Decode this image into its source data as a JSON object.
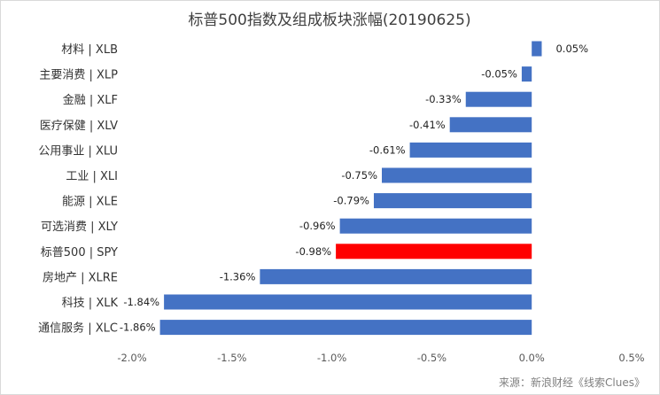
{
  "chart_data": {
    "type": "bar",
    "orientation": "horizontal",
    "title": "标普500指数及组成板块涨幅(20190625)",
    "categories": [
      "材料 | XLB",
      "主要消费 | XLP",
      "金融 | XLF",
      "医疗保健 | XLV",
      "公用事业 | XLU",
      "工业 | XLI",
      "能源 | XLE",
      "可选消费 | XLY",
      "标普500 | SPY",
      "房地产 | XLRE",
      "科技 | XLK",
      "通信服务 | XLC"
    ],
    "values": [
      0.05,
      -0.05,
      -0.33,
      -0.41,
      -0.61,
      -0.75,
      -0.79,
      -0.96,
      -0.98,
      -1.36,
      -1.84,
      -1.86
    ],
    "data_labels": [
      "0.05%",
      "-0.05%",
      "-0.33%",
      "-0.41%",
      "-0.61%",
      "-0.75%",
      "-0.79%",
      "-0.96%",
      "-0.98%",
      "-1.36%",
      "-1.84%",
      "-1.86%"
    ],
    "highlight_index": 8,
    "colors": {
      "bar": "#4472c4",
      "highlight": "#ff0000"
    },
    "xlim": [
      -2.0,
      0.5
    ],
    "x_ticks": [
      -2.0,
      -1.5,
      -1.0,
      -0.5,
      0.0,
      0.5
    ],
    "x_tick_labels": [
      "-2.0%",
      "-1.5%",
      "-1.0%",
      "-0.5%",
      "0.0%",
      "0.5%"
    ],
    "grid": false,
    "legend": "none"
  },
  "source_note": "来源：新浪财经《线索Clues》"
}
